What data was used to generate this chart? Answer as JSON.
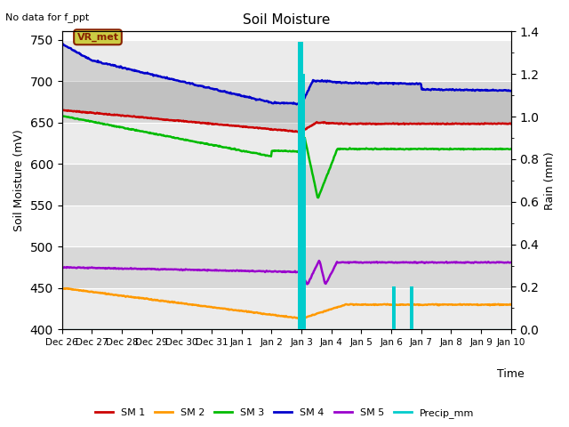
{
  "title": "Soil Moisture",
  "ylabel_left": "Soil Moisture (mV)",
  "ylabel_right": "Rain (mm)",
  "xlabel": "Time",
  "note": "No data for f_ppt",
  "vr_met_label": "VR_met",
  "ylim_left": [
    400,
    760
  ],
  "ylim_right": [
    0.0,
    1.4
  ],
  "yticks_left": [
    400,
    450,
    500,
    550,
    600,
    650,
    700,
    750
  ],
  "yticks_right": [
    0.0,
    0.2,
    0.4,
    0.6,
    0.8,
    1.0,
    1.2,
    1.4
  ],
  "sm1_color": "#cc0000",
  "sm2_color": "#ff9900",
  "sm3_color": "#00bb00",
  "sm4_color": "#0000cc",
  "sm5_color": "#9900cc",
  "precip_color": "#00cccc",
  "legend_labels": [
    "SM 1",
    "SM 2",
    "SM 3",
    "SM 4",
    "SM 5",
    "Precip_mm"
  ],
  "tick_labels": [
    "Dec 26",
    "Dec 27",
    "Dec 28",
    "Dec 29",
    "Dec 30",
    "Dec 31",
    "Jan 1",
    "Jan 2",
    "Jan 3",
    "Jan 4",
    "Jan 5",
    "Jan 6",
    "Jan 7",
    "Jan 8",
    "Jan 9",
    "Jan 10"
  ],
  "band_light": "#ebebeb",
  "band_dark": "#d8d8d8",
  "vr_bg": "#cccc44",
  "vr_edge": "#882200"
}
